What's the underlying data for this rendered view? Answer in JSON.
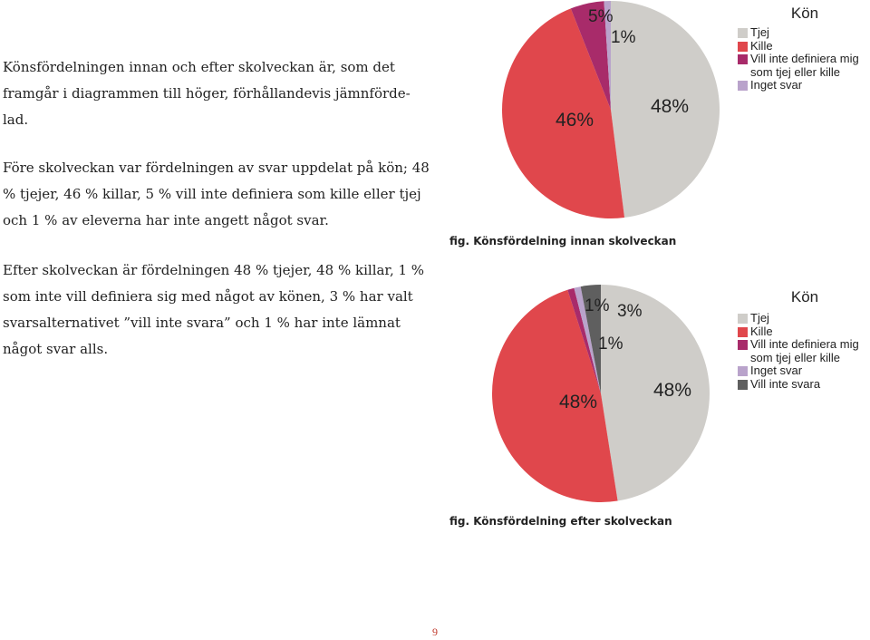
{
  "text": {
    "p1": "Könsfördelningen innan och efter skolveckan är, som det framgår i diagrammen till höger, förhållandevis jämnförde-lad.",
    "p2": "Före skolveckan var fördelningen av svar uppdelat på kön; 48 % tjejer, 46 % killar, 5 % vill inte definiera som kille eller tjej och 1 % av eleverna har inte angett något svar.",
    "p3": "Efter skolveckan är fördelningen 48 % tjejer, 48 % killar, 1 % som inte vill definiera sig med något av könen, 3 % har valt svarsalternativet ”vill inte svara” och 1 % har inte lämnat något svar alls."
  },
  "page_number": "9",
  "chart_data": [
    {
      "type": "pie",
      "title": "fig. Könsfördelning innan skolveckan",
      "legend_title": "Kön",
      "legend_position": "right",
      "slices": [
        {
          "name": "Tjej",
          "value": 48,
          "label": "48%",
          "color": "#cfcdc9"
        },
        {
          "name": "Kille",
          "value": 46,
          "label": "46%",
          "color": "#e0474c"
        },
        {
          "name": "Vill inte definiera mig som tjej eller kille",
          "value": 5,
          "label": "5%",
          "color": "#a82b6a"
        },
        {
          "name": "Inget svar",
          "value": 1,
          "label": "1%",
          "color": "#b9a3cb"
        }
      ]
    },
    {
      "type": "pie",
      "title": "fig. Könsfördelning efter skolveckan",
      "legend_title": "Kön",
      "legend_position": "right",
      "slices": [
        {
          "name": "Tjej",
          "value": 48,
          "label": "48%",
          "color": "#cfcdc9"
        },
        {
          "name": "Kille",
          "value": 48,
          "label": "48%",
          "color": "#e0474c"
        },
        {
          "name": "Vill inte definiera mig som tjej eller kille",
          "value": 1,
          "label": "1%",
          "color": "#a82b6a"
        },
        {
          "name": "Inget svar",
          "value": 1,
          "label": "1%",
          "color": "#b9a3cb"
        },
        {
          "name": "Vill inte svara",
          "value": 3,
          "label": "3%",
          "color": "#5f5f5f"
        }
      ]
    }
  ]
}
